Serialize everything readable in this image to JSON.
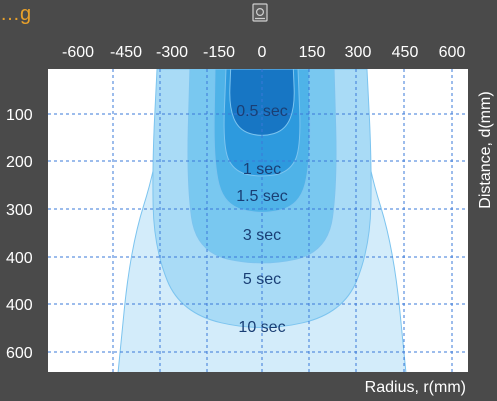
{
  "header_text": "…g",
  "sensor_icon": "sensor-icon",
  "chart_data": {
    "type": "area",
    "x_ticks": [
      "-600",
      "-450",
      "-300",
      "-150",
      "0",
      "150",
      "300",
      "450",
      "600"
    ],
    "x_values": [
      -600,
      -450,
      -300,
      -150,
      0,
      150,
      300,
      450,
      600
    ],
    "y_ticks": [
      "100",
      "200",
      "300",
      "400",
      "400",
      "600"
    ],
    "xlabel": "Radius, r(mm)",
    "ylabel": "Distance, d(mm)",
    "xlim": [
      -650,
      650
    ],
    "ylim": [
      0,
      650
    ],
    "grid": true,
    "series": [
      {
        "name": "10 sec",
        "color": "#d3ecfa",
        "points": [
          [
            -460,
            650
          ],
          [
            -420,
            380
          ],
          [
            -335,
            200
          ],
          [
            -300,
            0
          ],
          [
            300,
            0
          ],
          [
            335,
            200
          ],
          [
            420,
            380
          ],
          [
            460,
            650
          ]
        ]
      },
      {
        "name": "5 sec",
        "color": "#a9dbf6",
        "points": [
          [
            -335,
            0
          ],
          [
            -350,
            200
          ],
          [
            -345,
            380
          ],
          [
            -260,
            520
          ],
          [
            0,
            560
          ],
          [
            260,
            520
          ],
          [
            345,
            380
          ],
          [
            350,
            200
          ],
          [
            335,
            0
          ]
        ]
      },
      {
        "name": "3 sec",
        "color": "#79c8f0",
        "points": [
          [
            -230,
            0
          ],
          [
            -240,
            240
          ],
          [
            -210,
            390
          ],
          [
            0,
            420
          ],
          [
            210,
            390
          ],
          [
            240,
            240
          ],
          [
            230,
            0
          ]
        ]
      },
      {
        "name": "1.5 sec",
        "color": "#4fb3e8",
        "points": [
          [
            -150,
            0
          ],
          [
            -155,
            200
          ],
          [
            -120,
            290
          ],
          [
            0,
            310
          ],
          [
            120,
            290
          ],
          [
            155,
            200
          ],
          [
            150,
            0
          ]
        ]
      },
      {
        "name": "1 sec",
        "color": "#2d9ade",
        "points": [
          [
            -115,
            0
          ],
          [
            -125,
            170
          ],
          [
            -85,
            220
          ],
          [
            0,
            230
          ],
          [
            85,
            220
          ],
          [
            125,
            170
          ],
          [
            115,
            0
          ]
        ]
      },
      {
        "name": "0.5 sec",
        "color": "#1776c4",
        "points": [
          [
            -100,
            0
          ],
          [
            -105,
            80
          ],
          [
            -75,
            130
          ],
          [
            0,
            145
          ],
          [
            75,
            130
          ],
          [
            105,
            80
          ],
          [
            100,
            0
          ]
        ]
      }
    ],
    "labels": [
      {
        "text": "0.5 sec",
        "x": 0,
        "y": 100
      },
      {
        "text": "1 sec",
        "x": 0,
        "y": 200
      },
      {
        "text": "1.5 sec",
        "x": 0,
        "y": 265
      },
      {
        "text": "3 sec",
        "x": 0,
        "y": 340
      },
      {
        "text": "5 sec",
        "x": 0,
        "y": 455
      },
      {
        "text": "10 sec",
        "x": 0,
        "y": 575
      }
    ]
  }
}
